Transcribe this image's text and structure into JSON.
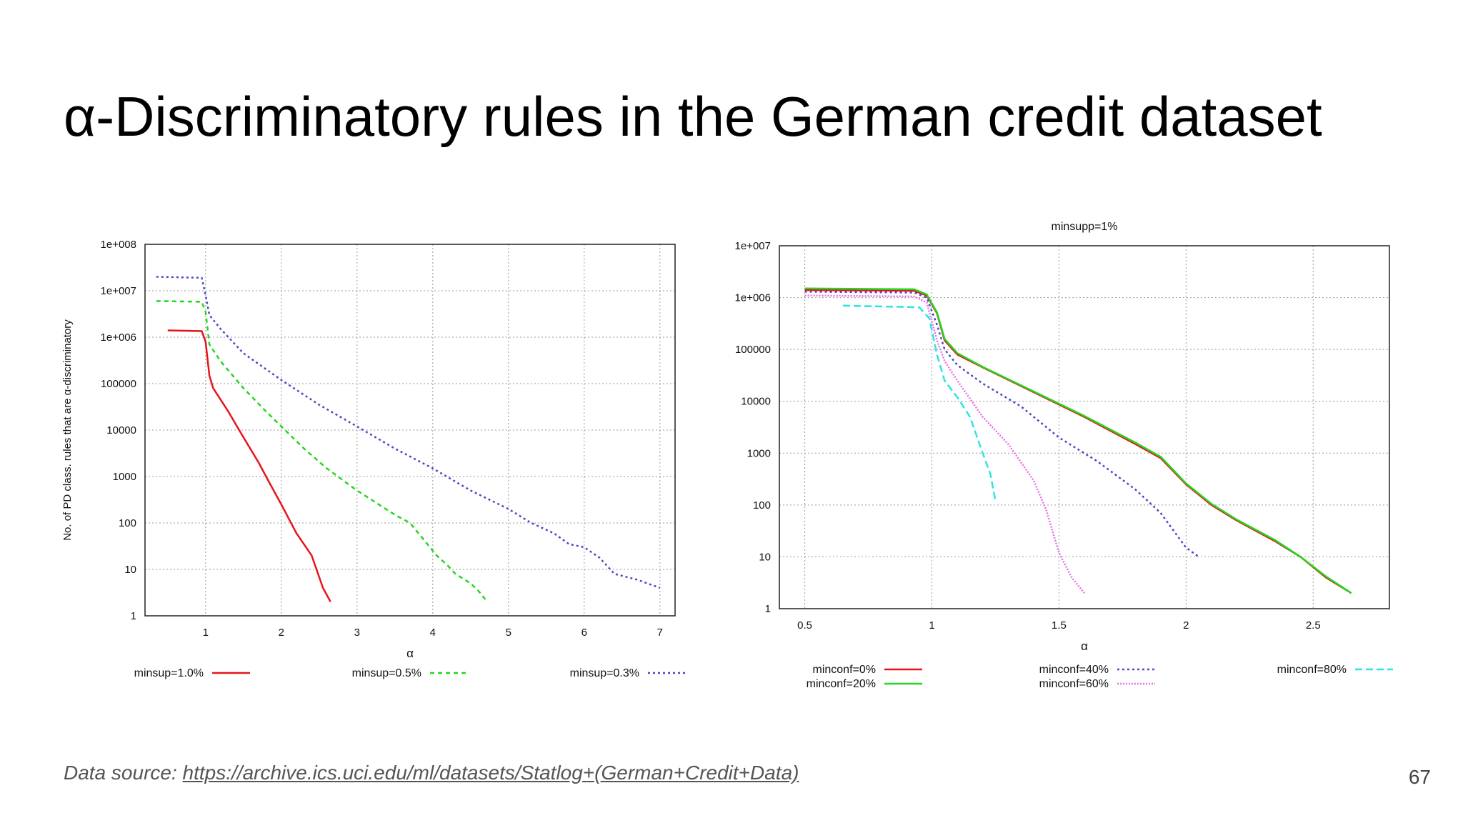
{
  "slide": {
    "title": "α-Discriminatory rules in the German credit dataset",
    "source_label": "Data source: ",
    "source_url": "https://archive.ics.uci.edu/ml/datasets/Statlog+(German+Credit+Data)",
    "page_number": "67"
  },
  "chart_data": [
    {
      "type": "line",
      "title": "",
      "xlabel": "α",
      "ylabel": "No. of PD class. rules that are α-discriminatory",
      "xlim": [
        0.2,
        7.2
      ],
      "ylim": [
        1,
        100000000
      ],
      "yscale": "log",
      "xticks": [
        1,
        2,
        3,
        4,
        5,
        6,
        7
      ],
      "xtick_labels": [
        "1",
        "2",
        "3",
        "4",
        "5",
        "6",
        "7"
      ],
      "yticks": [
        1,
        10,
        100,
        1000,
        10000,
        100000,
        1000000,
        10000000,
        100000000
      ],
      "ytick_labels": [
        "1",
        "10",
        "100",
        "1000",
        "10000",
        "100000",
        "1e+006",
        "1e+007",
        "1e+008"
      ],
      "grid": true,
      "legend_position": "bottom",
      "series": [
        {
          "name": "minsup=1.0%",
          "color": "#e8141b",
          "dash": "solid",
          "points": [
            [
              0.5,
              1400000
            ],
            [
              0.95,
              1350000
            ],
            [
              1.0,
              800000
            ],
            [
              1.05,
              150000
            ],
            [
              1.1,
              80000
            ],
            [
              1.3,
              25000
            ],
            [
              1.5,
              7000
            ],
            [
              1.7,
              2000
            ],
            [
              1.85,
              700
            ],
            [
              2.0,
              250
            ],
            [
              2.2,
              60
            ],
            [
              2.4,
              20
            ],
            [
              2.55,
              4
            ],
            [
              2.65,
              2
            ]
          ]
        },
        {
          "name": "minsup=0.5%",
          "color": "#24d61e",
          "dash": "6,5",
          "points": [
            [
              0.35,
              6000000
            ],
            [
              0.95,
              5800000
            ],
            [
              1.0,
              3500000
            ],
            [
              1.05,
              700000
            ],
            [
              1.2,
              300000
            ],
            [
              1.5,
              80000
            ],
            [
              1.8,
              25000
            ],
            [
              2.0,
              12000
            ],
            [
              2.3,
              4000
            ],
            [
              2.6,
              1500
            ],
            [
              3.0,
              500
            ],
            [
              3.5,
              150
            ],
            [
              3.7,
              100
            ],
            [
              3.9,
              40
            ],
            [
              4.05,
              20
            ],
            [
              4.2,
              12
            ],
            [
              4.3,
              8
            ],
            [
              4.5,
              5
            ],
            [
              4.6,
              3.5
            ],
            [
              4.72,
              2
            ]
          ]
        },
        {
          "name": "minsup=0.3%",
          "color": "#4848c6",
          "dash": "3,4",
          "points": [
            [
              0.35,
              20000000
            ],
            [
              0.95,
              19000000
            ],
            [
              1.0,
              8000000
            ],
            [
              1.05,
              3000000
            ],
            [
              1.2,
              1500000
            ],
            [
              1.5,
              450000
            ],
            [
              2.0,
              120000
            ],
            [
              2.5,
              35000
            ],
            [
              3.0,
              12000
            ],
            [
              3.5,
              4000
            ],
            [
              4.0,
              1500
            ],
            [
              4.5,
              500
            ],
            [
              5.0,
              200
            ],
            [
              5.3,
              100
            ],
            [
              5.6,
              60
            ],
            [
              5.8,
              35
            ],
            [
              6.0,
              30
            ],
            [
              6.2,
              18
            ],
            [
              6.4,
              8
            ],
            [
              6.7,
              6
            ],
            [
              7.0,
              4
            ]
          ]
        }
      ]
    },
    {
      "type": "line",
      "title": "minsupp=1%",
      "xlabel": "α",
      "ylabel": "",
      "xlim": [
        0.4,
        2.8
      ],
      "ylim": [
        1,
        10000000
      ],
      "yscale": "log",
      "xticks": [
        0.5,
        1,
        1.5,
        2,
        2.5
      ],
      "xtick_labels": [
        "0.5",
        "1",
        "1.5",
        "2",
        "2.5"
      ],
      "yticks": [
        1,
        10,
        100,
        1000,
        10000,
        100000,
        1000000,
        10000000
      ],
      "ytick_labels": [
        "1",
        "10",
        "100",
        "1000",
        "10000",
        "100000",
        "1e+006",
        "1e+007"
      ],
      "grid": true,
      "legend_position": "bottom",
      "series": [
        {
          "name": "minconf=0%",
          "color": "#e8141b",
          "dash": "solid",
          "points": [
            [
              0.5,
              1400000
            ],
            [
              0.93,
              1350000
            ],
            [
              0.98,
              1100000
            ],
            [
              1.02,
              500000
            ],
            [
              1.05,
              150000
            ],
            [
              1.1,
              80000
            ],
            [
              1.2,
              45000
            ],
            [
              1.4,
              15000
            ],
            [
              1.6,
              5000
            ],
            [
              1.8,
              1500
            ],
            [
              1.9,
              800
            ],
            [
              2.0,
              250
            ],
            [
              2.1,
              100
            ],
            [
              2.2,
              50
            ],
            [
              2.35,
              20
            ],
            [
              2.45,
              10
            ],
            [
              2.55,
              4
            ],
            [
              2.65,
              2
            ]
          ]
        },
        {
          "name": "minconf=20%",
          "color": "#24d61e",
          "dash": "solid",
          "points": [
            [
              0.5,
              1500000
            ],
            [
              0.93,
              1450000
            ],
            [
              0.98,
              1150000
            ],
            [
              1.02,
              520000
            ],
            [
              1.05,
              160000
            ],
            [
              1.1,
              85000
            ],
            [
              1.2,
              46000
            ],
            [
              1.4,
              15500
            ],
            [
              1.6,
              5200
            ],
            [
              1.8,
              1600
            ],
            [
              1.9,
              850
            ],
            [
              2.0,
              260
            ],
            [
              2.1,
              105
            ],
            [
              2.2,
              52
            ],
            [
              2.35,
              21
            ],
            [
              2.45,
              10
            ],
            [
              2.55,
              4.2
            ],
            [
              2.65,
              2
            ]
          ]
        },
        {
          "name": "minconf=40%",
          "color": "#4848c6",
          "dash": "3,4",
          "points": [
            [
              0.5,
              1300000
            ],
            [
              0.93,
              1250000
            ],
            [
              0.98,
              1000000
            ],
            [
              1.02,
              300000
            ],
            [
              1.05,
              100000
            ],
            [
              1.1,
              50000
            ],
            [
              1.2,
              22000
            ],
            [
              1.35,
              8000
            ],
            [
              1.5,
              2000
            ],
            [
              1.65,
              700
            ],
            [
              1.8,
              200
            ],
            [
              1.9,
              70
            ],
            [
              2.0,
              15
            ],
            [
              2.05,
              10
            ]
          ]
        },
        {
          "name": "minconf=60%",
          "color": "#e86ce8",
          "dash": "2,2",
          "points": [
            [
              0.5,
              1100000
            ],
            [
              0.93,
              1050000
            ],
            [
              0.98,
              800000
            ],
            [
              1.02,
              150000
            ],
            [
              1.05,
              60000
            ],
            [
              1.1,
              25000
            ],
            [
              1.2,
              5000
            ],
            [
              1.3,
              1500
            ],
            [
              1.4,
              300
            ],
            [
              1.45,
              80
            ],
            [
              1.5,
              12
            ],
            [
              1.55,
              4
            ],
            [
              1.6,
              2
            ]
          ]
        },
        {
          "name": "minconf=80%",
          "color": "#2ce4e4",
          "dash": "10,5",
          "points": [
            [
              0.65,
              700000
            ],
            [
              0.95,
              650000
            ],
            [
              0.99,
              400000
            ],
            [
              1.02,
              80000
            ],
            [
              1.05,
              25000
            ],
            [
              1.1,
              12000
            ],
            [
              1.15,
              5000
            ],
            [
              1.2,
              1000
            ],
            [
              1.23,
              400
            ],
            [
              1.25,
              120
            ]
          ]
        }
      ]
    }
  ]
}
